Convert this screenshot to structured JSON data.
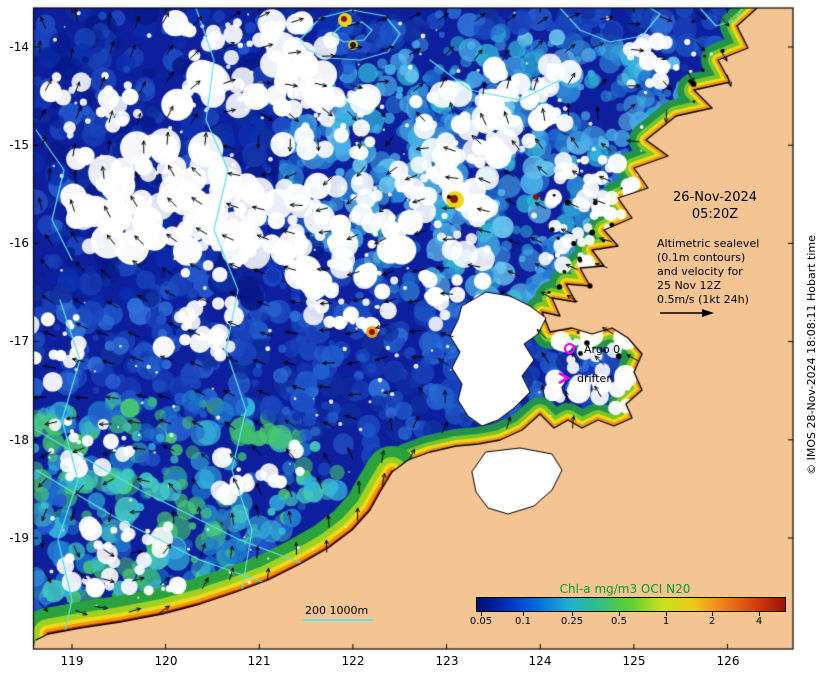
{
  "overlay": {
    "date_line1": "26-Nov-2024",
    "date_line2": "05:20Z",
    "annotation_lines": [
      "Altimetric sealevel",
      "(0.1m contours)",
      "and velocity for",
      "25 Nov 12Z",
      "0.5m/s (1kt 24h)"
    ],
    "argo_label": "Argo 0",
    "drifter_label": "drifter",
    "depth_contour_label": "200 1000m",
    "credit": "© IMOS 28-Nov-2024 18:08:11 Hobart time"
  },
  "colorbar": {
    "title": "Chl-a mg/m3 OCI N20",
    "tick_labels": [
      "0.05",
      "0.1",
      "0.25",
      "0.5",
      "1",
      "2",
      "4"
    ],
    "title_color": "#00a028",
    "gradient": [
      "#000d70",
      "#0030c0",
      "#0070e0",
      "#20b0d0",
      "#30c080",
      "#60d030",
      "#c8e020",
      "#f0c818",
      "#f08018",
      "#d84010",
      "#a01008"
    ]
  },
  "axes": {
    "x_tick_labels": [
      "119",
      "120",
      "121",
      "122",
      "123",
      "124",
      "125",
      "126"
    ],
    "y_tick_labels": [
      "-14",
      "-15",
      "-16",
      "-17",
      "-18",
      "-19"
    ]
  },
  "colors": {
    "land": "#f4c492",
    "ocean_deep": "#0d1f9c",
    "ssh_contour": "#5ee0e8",
    "cloud": "#ffffff",
    "vector_arrow": "#000000",
    "marker_magenta": "#ff00ff"
  }
}
